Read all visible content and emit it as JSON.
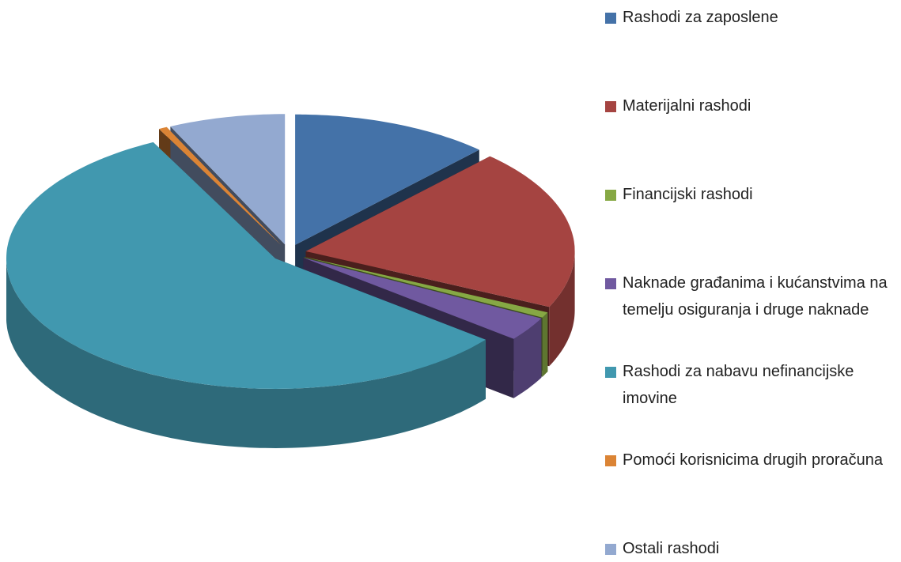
{
  "chart_data": {
    "type": "pie",
    "categories": [
      "Rashodi za zaposlene",
      "Materijalni rashodi",
      "Financijski rashodi",
      "Naknade građanima i kućanstvima na temelju osiguranja i druge naknade",
      "Rashodi za nabavu nefinancijske imovine",
      "Pomoći korisnicima drugih proračuna",
      "Ostali rashodi"
    ],
    "values": [
      12,
      20,
      0.7,
      3,
      56.8,
      0.5,
      7
    ],
    "colors": [
      "#4472a8",
      "#a54441",
      "#86a844",
      "#7059a0",
      "#4198af",
      "#db8435",
      "#93a9d0"
    ],
    "legend": "right"
  }
}
